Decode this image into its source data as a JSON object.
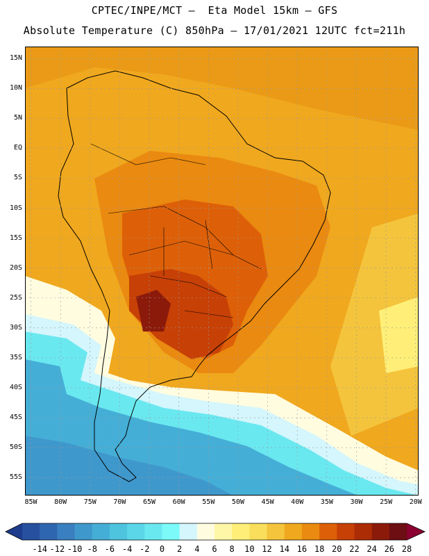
{
  "title": {
    "line1": "CPTEC/INPE/MCT –  Eta Model 15km – GFS",
    "line2": "Absolute Temperature (C) 850hPa – 17/01/2021 12UTC fct=211h"
  },
  "axes": {
    "lat_labels": [
      "15N",
      "10N",
      "5N",
      "EQ",
      "5S",
      "10S",
      "15S",
      "20S",
      "25S",
      "30S",
      "35S",
      "40S",
      "45S",
      "50S",
      "55S"
    ],
    "lon_labels": [
      "85W",
      "80W",
      "75W",
      "70W",
      "65W",
      "60W",
      "55W",
      "50W",
      "45W",
      "40W",
      "35W",
      "30W",
      "25W",
      "20W"
    ],
    "lat_range": [
      17,
      -58
    ],
    "lon_range": [
      -86,
      -19.5
    ],
    "grid": "dotted"
  },
  "colorbar": {
    "labels": [
      "-14",
      "-12",
      "-10",
      "-8",
      "-6",
      "-4",
      "-2",
      "0",
      "2",
      "4",
      "6",
      "8",
      "10",
      "12",
      "14",
      "16",
      "18",
      "20",
      "22",
      "24",
      "26",
      "28"
    ],
    "colors": [
      "#1e3c8c",
      "#27509f",
      "#2f66b0",
      "#3a7fc0",
      "#3f98cc",
      "#45aed6",
      "#4ec4df",
      "#5ad6e8",
      "#6ae8f0",
      "#7cfafa",
      "#d4f6fc",
      "#fffce0",
      "#fff7a8",
      "#ffef78",
      "#f9de5c",
      "#f4c43c",
      "#f0a81e",
      "#ea8a10",
      "#dd6008",
      "#c74006",
      "#ac2c06",
      "#8c1a0a",
      "#6c0e12",
      "#8a0030"
    ]
  },
  "map": {
    "field": "850 hPa absolute temperature",
    "colors": {
      "ocean_warm": "#f0a81e",
      "land_hot": "#dd6008",
      "core_hot": "#ac2c06",
      "south_cold": "#45aed6",
      "coast": "#000000"
    }
  }
}
